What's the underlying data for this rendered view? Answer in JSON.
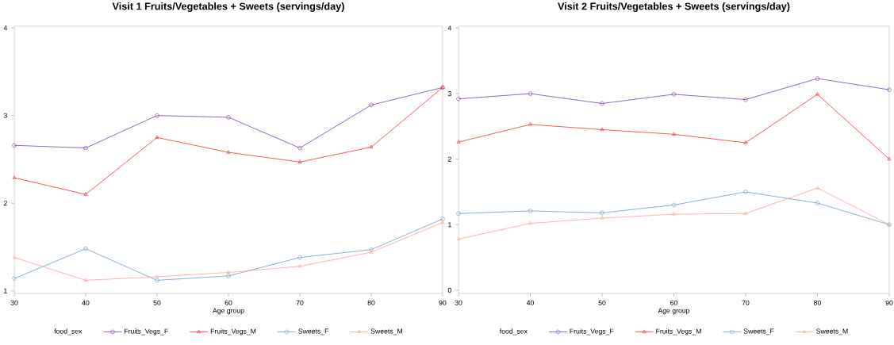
{
  "chart_data": [
    {
      "type": "line",
      "title": "Visit 1 Fruits/Vegetables + Sweets (servings/day)",
      "xlabel": "Age group",
      "legend_title": "food_sex",
      "x": [
        30,
        40,
        50,
        60,
        70,
        80,
        90
      ],
      "xlim": [
        30,
        90
      ],
      "xticks": [
        30,
        40,
        50,
        60,
        70,
        80,
        90
      ],
      "ylim": [
        0.97,
        4.02
      ],
      "yticks": [
        1,
        2,
        3,
        4
      ],
      "legend": "bottom",
      "line_style": "solid",
      "series": [
        {
          "name": "Fruits_Vegs_F",
          "color": "#7b3fb5",
          "marker": "circle",
          "values": [
            2.66,
            2.63,
            3.0,
            2.98,
            2.63,
            3.12,
            3.32
          ]
        },
        {
          "name": "Fruits_Vegs_M",
          "color": "#ff2b2b",
          "marker": "triangle",
          "values": [
            2.29,
            2.1,
            2.75,
            2.58,
            2.47,
            2.64,
            3.32
          ]
        },
        {
          "name": "Sweets_F",
          "color": "#6a9ccb",
          "marker": "circle",
          "values": [
            1.14,
            1.48,
            1.12,
            1.17,
            1.38,
            1.47,
            1.82
          ]
        },
        {
          "name": "Sweets_M",
          "color": "#ffa095",
          "marker": "triangle",
          "values": [
            1.38,
            1.12,
            1.16,
            1.21,
            1.28,
            1.44,
            1.78
          ]
        }
      ]
    },
    {
      "type": "line",
      "title": "Visit 2 Fruits/Vegetables + Sweets (servings/day)",
      "xlabel": "Age group",
      "legend_title": "food_sex",
      "x": [
        30,
        40,
        50,
        60,
        70,
        80,
        90
      ],
      "xlim": [
        30,
        90
      ],
      "xticks": [
        30,
        40,
        50,
        60,
        70,
        80,
        90
      ],
      "ylim": [
        -0.05,
        4.03
      ],
      "yticks": [
        0,
        1,
        2,
        3,
        4
      ],
      "legend": "bottom",
      "line_style": "solid",
      "series": [
        {
          "name": "Fruits_Vegs_F",
          "color": "#7b3fb5",
          "marker": "circle",
          "values": [
            2.92,
            3.0,
            2.85,
            2.99,
            2.91,
            3.23,
            3.06
          ]
        },
        {
          "name": "Fruits_Vegs_M",
          "color": "#ff2b2b",
          "marker": "triangle",
          "values": [
            2.26,
            2.53,
            2.45,
            2.38,
            2.25,
            2.99,
            2.0
          ]
        },
        {
          "name": "Sweets_F",
          "color": "#6a9ccb",
          "marker": "circle",
          "values": [
            1.17,
            1.21,
            1.18,
            1.3,
            1.5,
            1.33,
            1.0
          ]
        },
        {
          "name": "Sweets_M",
          "color": "#ffa095",
          "marker": "triangle",
          "values": [
            0.78,
            1.02,
            1.1,
            1.16,
            1.17,
            1.56,
            1.0
          ]
        }
      ]
    }
  ]
}
